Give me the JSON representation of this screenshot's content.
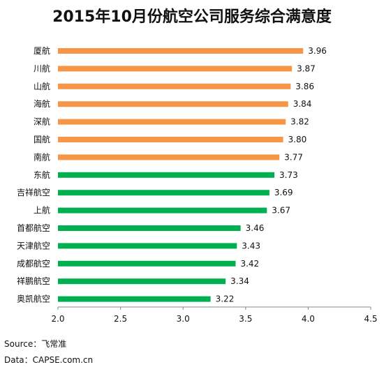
{
  "chart_data": {
    "type": "bar",
    "orientation": "horizontal",
    "title": "2015年10月份航空公司服务综合满意度",
    "categories": [
      "厦航",
      "川航",
      "山航",
      "海航",
      "深航",
      "国航",
      "南航",
      "东航",
      "吉祥航空",
      "上航",
      "首都航空",
      "天津航空",
      "成都航空",
      "祥鹏航空",
      "奥凯航空"
    ],
    "values": [
      3.96,
      3.87,
      3.86,
      3.84,
      3.82,
      3.8,
      3.77,
      3.73,
      3.69,
      3.67,
      3.46,
      3.43,
      3.42,
      3.34,
      3.22
    ],
    "value_labels": [
      "3.96",
      "3.87",
      "3.86",
      "3.84",
      "3.82",
      "3.80",
      "3.77",
      "3.73",
      "3.69",
      "3.67",
      "3.46",
      "3.43",
      "3.42",
      "3.34",
      "3.22"
    ],
    "bar_colors": [
      "#F79646",
      "#F79646",
      "#F79646",
      "#F79646",
      "#F79646",
      "#F79646",
      "#F79646",
      "#00B050",
      "#00B050",
      "#00B050",
      "#00B050",
      "#00B050",
      "#00B050",
      "#00B050",
      "#00B050"
    ],
    "xlim": [
      2.0,
      4.5
    ],
    "xticks": [
      "2.0",
      "2.5",
      "3.0",
      "3.5",
      "4.0",
      "4.5"
    ],
    "grid": false,
    "xlabel": "",
    "ylabel": ""
  },
  "footer": {
    "source": "Source：飞常准",
    "data": "Data：CAPSE.com.cn"
  }
}
